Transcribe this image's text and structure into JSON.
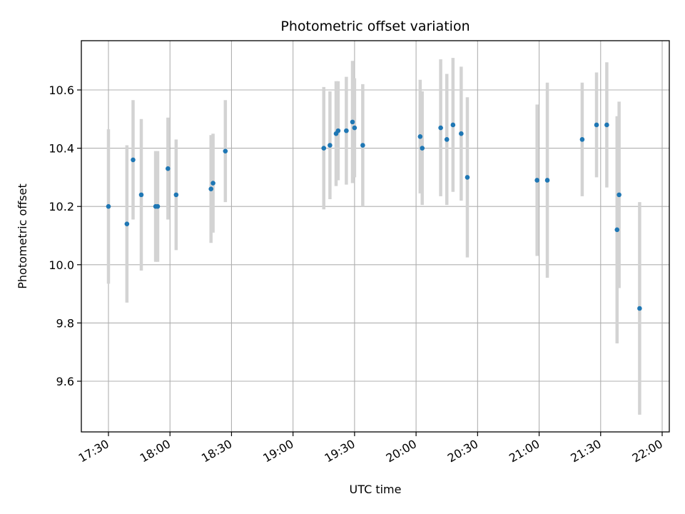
{
  "chart_data": {
    "type": "scatter",
    "title": "Photometric offset variation",
    "xlabel": "UTC time",
    "ylabel": "Photometric offset",
    "xlim": [
      "17:17",
      "22:00"
    ],
    "ylim": [
      9.43,
      10.77
    ],
    "grid": true,
    "x_ticks": [
      "17:30",
      "18:00",
      "18:30",
      "19:00",
      "19:30",
      "20:00",
      "20:30",
      "21:00",
      "21:30",
      "22:00"
    ],
    "y_ticks": [
      9.6,
      9.8,
      10.0,
      10.2,
      10.4,
      10.6
    ],
    "y_tick_labels": [
      "9.6",
      "9.8",
      "10.0",
      "10.2",
      "10.4",
      "10.6"
    ],
    "colors": {
      "points": "#1f77b4",
      "errorbars": "#d3d3d3",
      "grid": "#b0b0b0"
    },
    "series": [
      {
        "points": [
          {
            "x": "17:30",
            "y": 10.2,
            "yerr": 0.265
          },
          {
            "x": "17:39",
            "y": 10.14,
            "yerr": 0.27
          },
          {
            "x": "17:42",
            "y": 10.36,
            "yerr": 0.205
          },
          {
            "x": "17:46",
            "y": 10.24,
            "yerr": 0.26
          },
          {
            "x": "17:53",
            "y": 10.2,
            "yerr": 0.19
          },
          {
            "x": "17:54",
            "y": 10.2,
            "yerr": 0.19
          },
          {
            "x": "17:59",
            "y": 10.33,
            "yerr": 0.175
          },
          {
            "x": "18:03",
            "y": 10.24,
            "yerr": 0.19
          },
          {
            "x": "18:20",
            "y": 10.26,
            "yerr": 0.185
          },
          {
            "x": "18:21",
            "y": 10.28,
            "yerr": 0.17
          },
          {
            "x": "18:27",
            "y": 10.39,
            "yerr": 0.175
          },
          {
            "x": "19:15",
            "y": 10.4,
            "yerr": 0.21
          },
          {
            "x": "19:18",
            "y": 10.41,
            "yerr": 0.185
          },
          {
            "x": "19:21",
            "y": 10.45,
            "yerr": 0.18
          },
          {
            "x": "19:22",
            "y": 10.46,
            "yerr": 0.17
          },
          {
            "x": "19:26",
            "y": 10.46,
            "yerr": 0.185
          },
          {
            "x": "19:29",
            "y": 10.49,
            "yerr": 0.21
          },
          {
            "x": "19:30",
            "y": 10.47,
            "yerr": 0.17
          },
          {
            "x": "19:34",
            "y": 10.41,
            "yerr": 0.21
          },
          {
            "x": "20:02",
            "y": 10.44,
            "yerr": 0.195
          },
          {
            "x": "20:03",
            "y": 10.4,
            "yerr": 0.195
          },
          {
            "x": "20:12",
            "y": 10.47,
            "yerr": 0.235
          },
          {
            "x": "20:15",
            "y": 10.43,
            "yerr": 0.225
          },
          {
            "x": "20:18",
            "y": 10.48,
            "yerr": 0.23
          },
          {
            "x": "20:22",
            "y": 10.45,
            "yerr": 0.23
          },
          {
            "x": "20:25",
            "y": 10.3,
            "yerr": 0.275
          },
          {
            "x": "20:59",
            "y": 10.29,
            "yerr": 0.26
          },
          {
            "x": "21:04",
            "y": 10.29,
            "yerr": 0.335
          },
          {
            "x": "21:21",
            "y": 10.43,
            "yerr": 0.195
          },
          {
            "x": "21:28",
            "y": 10.48,
            "yerr": 0.18
          },
          {
            "x": "21:33",
            "y": 10.48,
            "yerr": 0.215
          },
          {
            "x": "21:38",
            "y": 10.12,
            "yerr": 0.39
          },
          {
            "x": "21:39",
            "y": 10.24,
            "yerr": 0.32
          },
          {
            "x": "21:49",
            "y": 9.85,
            "yerr": 0.365
          }
        ]
      }
    ]
  }
}
